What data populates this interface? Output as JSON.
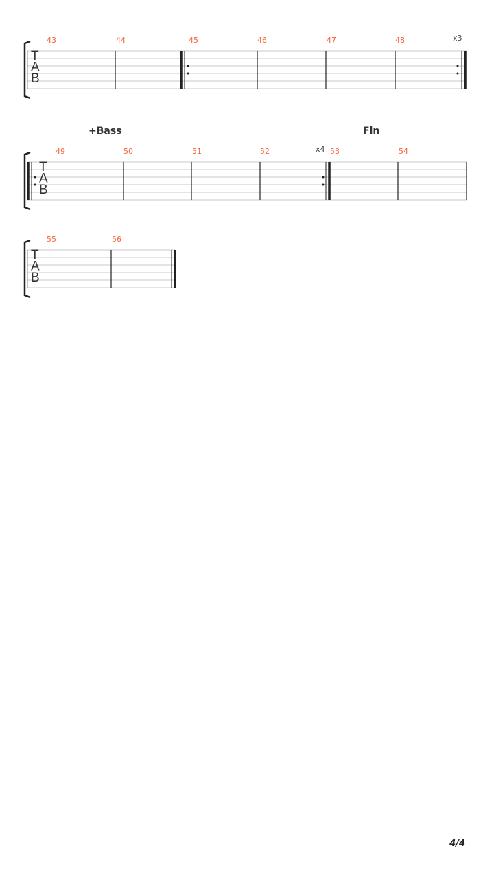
{
  "systems": [
    {
      "measures": [
        "43",
        "44",
        "45",
        "46",
        "47",
        "48"
      ],
      "repeat_label": "x3"
    },
    {
      "measures": [
        "49",
        "50",
        "51",
        "52",
        "53",
        "54"
      ],
      "repeat_label": "x4",
      "markers": [
        "+Bass",
        "Fin"
      ]
    },
    {
      "measures": [
        "55",
        "56"
      ]
    }
  ],
  "tab_clef": [
    "T",
    "A",
    "B"
  ],
  "page_number": "4/4",
  "colors": {
    "measure_number": "#f4663a",
    "staff_line": "#c8c8c8",
    "barline": "#222"
  }
}
